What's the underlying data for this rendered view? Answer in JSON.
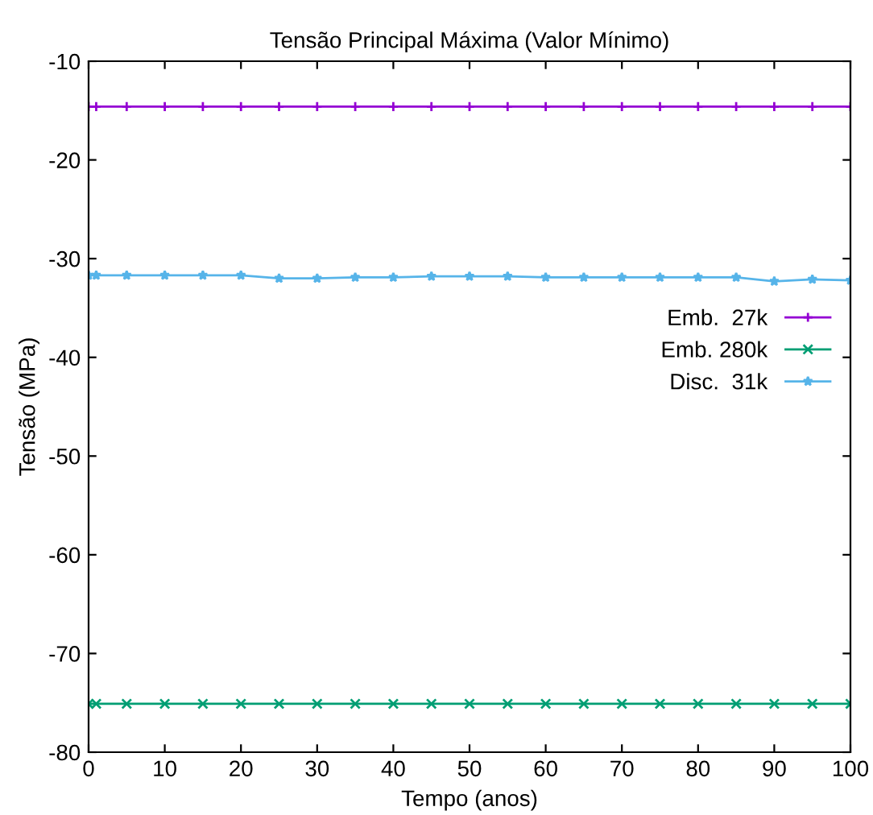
{
  "chart_data": {
    "type": "line",
    "title": "Tensão Principal Máxima (Valor Mínimo)",
    "xlabel": "Tempo (anos)",
    "ylabel": "Tensão (MPa)",
    "x": [
      0,
      1,
      5,
      10,
      15,
      20,
      25,
      30,
      35,
      40,
      45,
      50,
      55,
      60,
      65,
      70,
      75,
      80,
      85,
      90,
      95,
      100
    ],
    "series": [
      {
        "name": "Emb.  27k",
        "color": "#9400d3",
        "marker": "cross",
        "values": [
          -14.6,
          -14.6,
          -14.6,
          -14.6,
          -14.6,
          -14.6,
          -14.6,
          -14.6,
          -14.6,
          -14.6,
          -14.6,
          -14.6,
          -14.6,
          -14.6,
          -14.6,
          -14.6,
          -14.6,
          -14.6,
          -14.6,
          -14.6,
          -14.6,
          -14.6
        ]
      },
      {
        "name": "Emb. 280k",
        "color": "#009e73",
        "marker": "x",
        "values": [
          -75.1,
          -75.1,
          -75.1,
          -75.1,
          -75.1,
          -75.1,
          -75.1,
          -75.1,
          -75.1,
          -75.1,
          -75.1,
          -75.1,
          -75.1,
          -75.1,
          -75.1,
          -75.1,
          -75.1,
          -75.1,
          -75.1,
          -75.1,
          -75.1,
          -75.1
        ]
      },
      {
        "name": "Disc.  31k",
        "color": "#56b4e9",
        "marker": "star",
        "values": [
          -31.7,
          -31.7,
          -31.7,
          -31.7,
          -31.7,
          -31.7,
          -32.0,
          -32.0,
          -31.9,
          -31.9,
          -31.8,
          -31.8,
          -31.8,
          -31.9,
          -31.9,
          -31.9,
          -31.9,
          -31.9,
          -31.9,
          -32.3,
          -32.1,
          -32.2
        ]
      }
    ],
    "xlim": [
      0,
      100
    ],
    "xticks": [
      0,
      10,
      20,
      30,
      40,
      50,
      60,
      70,
      80,
      90,
      100
    ],
    "ylim": [
      -80,
      -10
    ],
    "yticks": [
      -80,
      -70,
      -60,
      -50,
      -40,
      -30,
      -20,
      -10
    ],
    "grid": false,
    "legend": "right"
  }
}
